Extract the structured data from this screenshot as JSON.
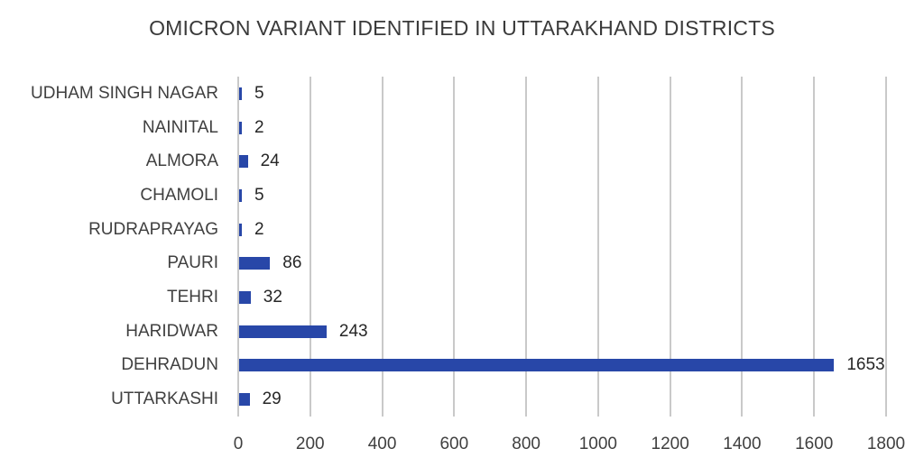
{
  "chart_data": {
    "type": "bar",
    "orientation": "horizontal",
    "title": "OMICRON VARIANT IDENTIFIED IN UTTARAKHAND DISTRICTS",
    "xlabel": "",
    "ylabel": "",
    "categories": [
      "UDHAM SINGH NAGAR",
      "NAINITAL",
      "ALMORA",
      "CHAMOLI",
      "RUDRAPRAYAG",
      "PAURI",
      "TEHRI",
      "HARIDWAR",
      "DEHRADUN",
      "UTTARKASHI"
    ],
    "values": [
      5,
      2,
      24,
      5,
      2,
      86,
      32,
      243,
      1653,
      29
    ],
    "data_labels": [
      "5",
      "2",
      "24",
      "5",
      "2",
      "86",
      "32",
      "243",
      "1653",
      "29"
    ],
    "xlim": [
      0,
      1800
    ],
    "x_ticks": [
      "0",
      "200",
      "400",
      "600",
      "800",
      "1000",
      "1200",
      "1400",
      "1600",
      "1800"
    ],
    "grid": "vertical",
    "legend": "none",
    "bar_color": "#2847a8"
  }
}
